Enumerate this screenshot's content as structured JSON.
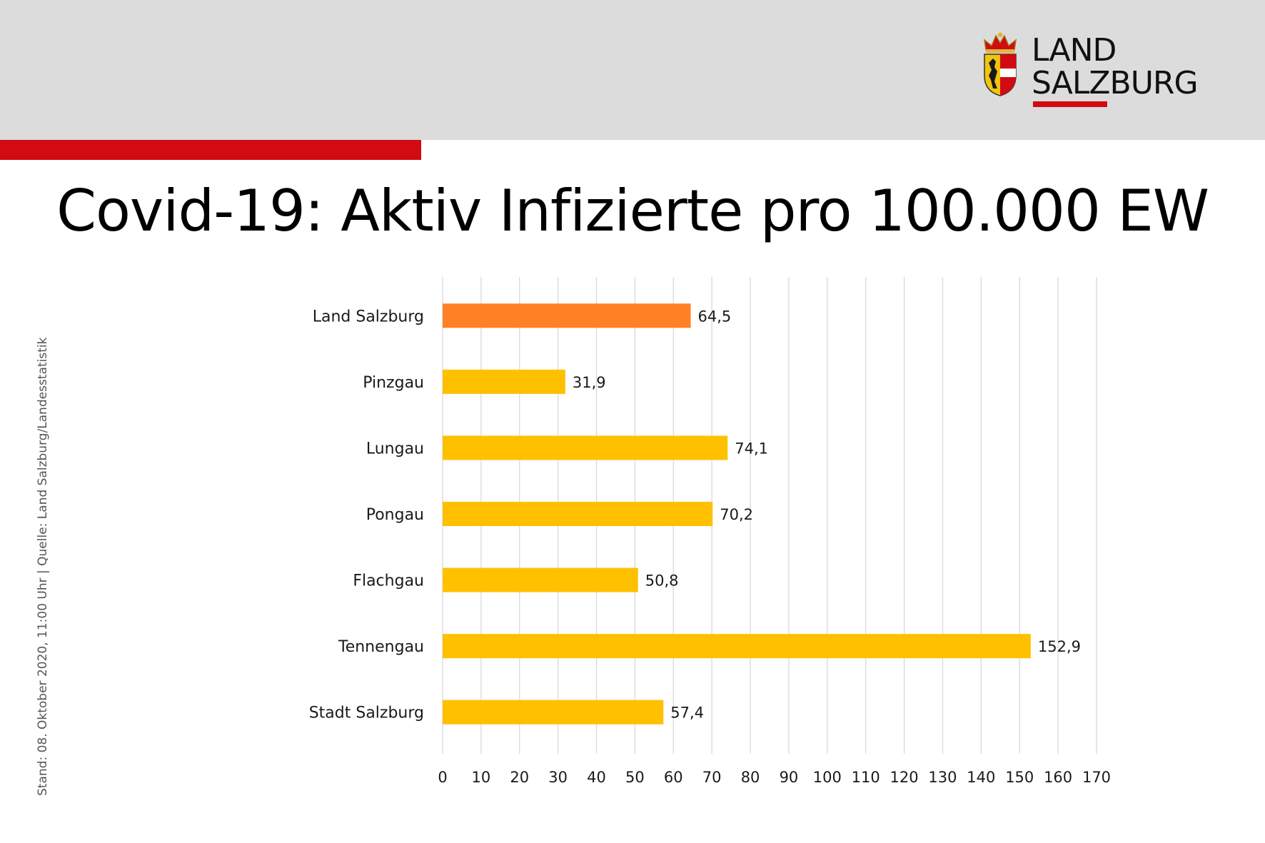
{
  "header": {
    "logo": {
      "line1": "LAND",
      "line2": "SALZBURG",
      "crest_icon": "salzburg-coat-of-arms-icon"
    },
    "accent_color": "#d20a11"
  },
  "title": "Covid-19: Aktiv Infizierte pro 100.000 EW",
  "side_note": "Stand: 08. Oktober 2020, 11:00 Uhr | Quelle: Land Salzburg/Landesstatistik",
  "chart_data": {
    "type": "bar",
    "orientation": "horizontal",
    "categories": [
      "Land Salzburg",
      "Pinzgau",
      "Lungau",
      "Pongau",
      "Flachgau",
      "Tennengau",
      "Stadt Salzburg"
    ],
    "values": [
      64.5,
      31.9,
      74.1,
      70.2,
      50.8,
      152.9,
      57.4
    ],
    "value_labels": [
      "64,5",
      "31,9",
      "74,1",
      "70,2",
      "50,8",
      "152,9",
      "57,4"
    ],
    "bar_colors": [
      "#ff8025",
      "#ffc000",
      "#ffc000",
      "#ffc000",
      "#ffc000",
      "#ffc000",
      "#ffc000"
    ],
    "xlim": [
      0,
      170
    ],
    "xticks": [
      0,
      10,
      20,
      30,
      40,
      50,
      60,
      70,
      80,
      90,
      100,
      110,
      120,
      130,
      140,
      150,
      160,
      170
    ],
    "grid": true,
    "legend": "none"
  }
}
